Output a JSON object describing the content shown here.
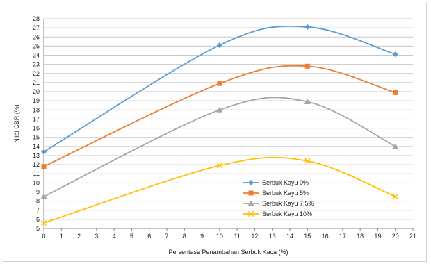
{
  "chart_data": {
    "type": "line",
    "title": "",
    "xlabel": "Persentase Penambahan Serbuk Kaca (%)",
    "ylabel": "Nilai CBR (%)",
    "xlim": [
      0,
      21
    ],
    "ylim": [
      5,
      28
    ],
    "x_ticks": [
      "0",
      "1",
      "2",
      "3",
      "4",
      "5",
      "6",
      "7",
      "8",
      "9",
      "10",
      "11",
      "12",
      "13",
      "14",
      "15",
      "16",
      "17",
      "18",
      "19",
      "20",
      "21"
    ],
    "y_ticks": [
      "5",
      "6",
      "7",
      "8",
      "9",
      "10",
      "11",
      "12",
      "13",
      "14",
      "15",
      "16",
      "17",
      "18",
      "19",
      "20",
      "21",
      "22",
      "23",
      "24",
      "25",
      "26",
      "27",
      "28"
    ],
    "grid": "horizontal",
    "legend_position": "center-right",
    "x": [
      0,
      10,
      15,
      20
    ],
    "series": [
      {
        "name": "Serbuk Kayu 0%",
        "values": [
          13.4,
          25.1,
          27.1,
          24.1
        ],
        "color": "#5b9bd5",
        "marker": "diamond"
      },
      {
        "name": "Serbuk Kayu 5%",
        "values": [
          11.8,
          20.9,
          22.8,
          19.9
        ],
        "color": "#ed7d31",
        "marker": "square"
      },
      {
        "name": "Serbuk Kayu 7,5%",
        "values": [
          8.5,
          18.0,
          18.9,
          14.0
        ],
        "color": "#a5a5a5",
        "marker": "triangle"
      },
      {
        "name": "Serbuk Kayu 10%",
        "values": [
          5.6,
          11.9,
          12.4,
          8.5
        ],
        "color": "#ffc000",
        "marker": "x"
      }
    ]
  }
}
